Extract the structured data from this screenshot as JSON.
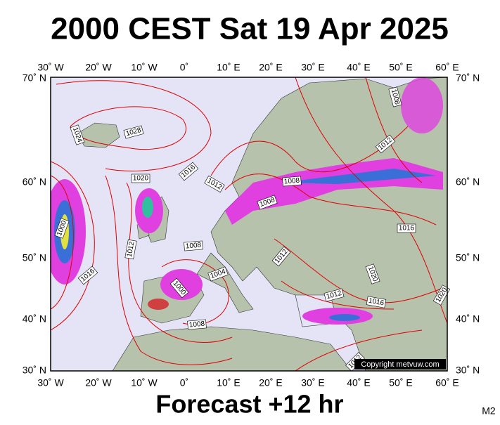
{
  "header": {
    "title": "2000 CEST Sat 19 Apr 2025"
  },
  "map": {
    "lon_labels": [
      "30˚ W",
      "20˚ W",
      "10˚ W",
      "0˚",
      "10˚ E",
      "20˚ E",
      "30˚ E",
      "40˚ E",
      "50˚ E",
      "60˚ E"
    ],
    "lat_labels": [
      "70˚ N",
      "60˚ N",
      "50˚ N",
      "40˚ N",
      "30˚ N"
    ],
    "isobar_labels": [
      "1024",
      "1028",
      "1020",
      "1016",
      "1012",
      "1008",
      "1008",
      "1012",
      "1008",
      "1016",
      "1000",
      "1016",
      "1012",
      "1008",
      "1004",
      "1000",
      "1008",
      "1012",
      "1020",
      "1012",
      "1016",
      "1020",
      "1012"
    ],
    "copyright": "Copyright metvuw.com"
  },
  "footer": {
    "forecast": "Forecast +12 hr",
    "model": "M2"
  }
}
